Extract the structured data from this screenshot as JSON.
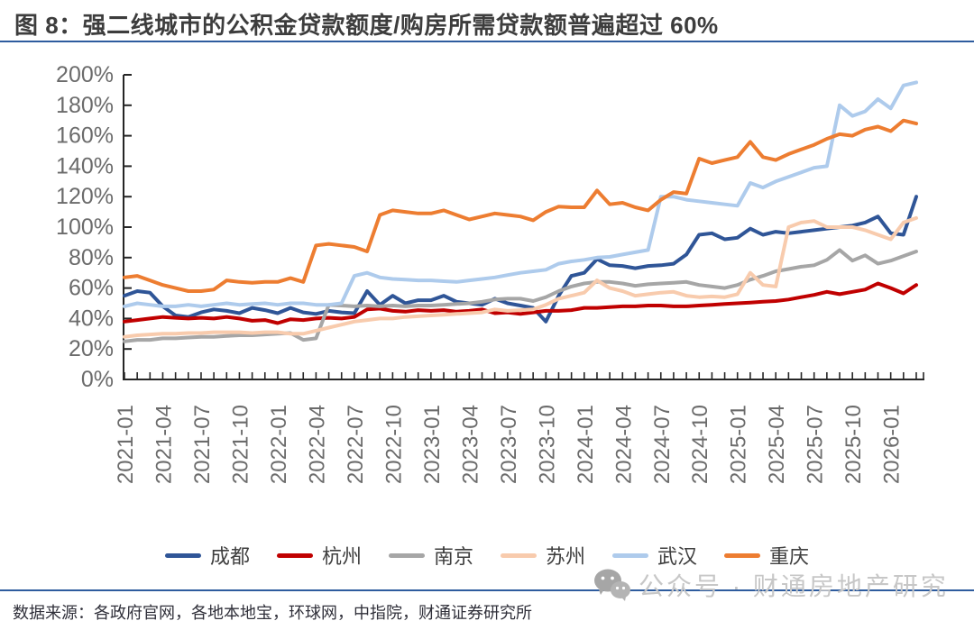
{
  "title": "图 8：强二线城市的公积金贷款额度/购房所需贷款额普遍超过 60%",
  "source": "数据来源：各政府官网，各地本地宝，环球网，中指院，财通证券研究所",
  "watermark": {
    "icon": "wechat-icon",
    "text": "公众号 · 财通房地产研究"
  },
  "colors": {
    "accent_rule": "#2e5c9e",
    "axis": "#262626",
    "tick_label": "#6b6b6b"
  },
  "chart_data": {
    "type": "line",
    "title": "",
    "xlabel": "",
    "ylabel": "",
    "ylim": [
      0,
      200
    ],
    "grid": false,
    "legend_position": "bottom",
    "x_start": "2021-01",
    "x_end": "2026-03",
    "x_frequency": "monthly",
    "x_tick_labels": [
      "2021-01",
      "2021-04",
      "2021-07",
      "2021-10",
      "2022-01",
      "2022-04",
      "2022-07",
      "2022-10",
      "2023-01",
      "2023-04",
      "2023-07",
      "2023-10",
      "2024-01",
      "2024-04",
      "2024-07",
      "2024-10",
      "2025-01",
      "2025-04",
      "2025-07",
      "2025-10",
      "2026-01"
    ],
    "y_tick_labels": [
      "0%",
      "20%",
      "40%",
      "60%",
      "80%",
      "100%",
      "120%",
      "140%",
      "160%",
      "180%",
      "200%"
    ],
    "series": [
      {
        "name": "成都",
        "color": "#2f5597",
        "values": [
          55,
          58,
          57,
          48,
          42,
          41,
          44,
          46,
          45,
          43.5,
          47,
          45.5,
          43.5,
          47,
          44,
          43,
          45,
          44,
          43.5,
          58,
          49,
          55,
          50,
          52,
          52,
          55,
          51,
          50,
          49,
          53,
          50,
          48.5,
          47,
          38,
          55,
          68,
          70,
          79,
          75,
          74.5,
          73,
          74.5,
          75,
          76,
          82,
          95,
          96,
          92,
          93,
          99,
          95,
          97,
          96,
          97,
          98,
          99,
          100,
          101,
          103,
          107,
          96,
          95,
          120
        ]
      },
      {
        "name": "杭州",
        "color": "#c00000",
        "values": [
          38,
          39,
          40,
          41,
          40.5,
          40,
          40.5,
          40,
          41,
          40,
          38.5,
          39,
          37,
          39.5,
          39,
          40,
          40.5,
          40,
          41,
          46,
          46.5,
          45,
          44.5,
          45.5,
          45,
          45.5,
          44.5,
          45,
          46,
          43.5,
          44,
          43,
          44,
          45,
          45,
          45.5,
          47,
          47,
          47.5,
          48,
          48,
          48.5,
          48.5,
          48,
          48,
          48.5,
          49,
          49.5,
          50,
          50.5,
          51,
          51.5,
          52.5,
          54,
          55.5,
          57.5,
          56,
          57.5,
          59,
          63,
          60,
          56.5,
          62
        ]
      },
      {
        "name": "南京",
        "color": "#a6a6a6",
        "values": [
          25,
          26,
          26,
          27,
          27,
          27.5,
          28,
          28,
          28.5,
          29,
          29,
          29.5,
          30,
          30.5,
          26,
          27,
          49,
          48.5,
          48,
          48.5,
          48,
          48.5,
          48,
          48.5,
          48.5,
          49,
          49.5,
          50,
          51,
          52.5,
          53,
          53,
          51.5,
          54,
          58,
          61,
          63,
          64,
          64,
          63,
          61.5,
          62.5,
          63,
          63.5,
          64,
          62,
          61,
          60,
          62,
          65.5,
          68,
          71,
          72.5,
          74,
          75,
          78.5,
          85,
          78,
          81.5,
          76,
          78,
          81,
          84
        ]
      },
      {
        "name": "苏州",
        "color": "#f8cbad",
        "values": [
          28,
          29,
          29.5,
          30,
          30,
          30.5,
          30.5,
          31,
          31,
          31,
          30.5,
          31,
          31,
          30,
          30,
          32,
          34,
          36,
          38,
          39,
          40,
          40,
          41,
          41.5,
          42,
          42.5,
          43,
          43.5,
          44,
          46,
          45,
          45.5,
          46,
          49,
          53,
          55,
          57,
          65,
          60,
          58,
          55,
          56,
          57,
          57.5,
          55,
          54,
          54.5,
          54,
          56,
          70,
          62,
          61,
          100,
          103,
          104,
          100,
          100,
          100,
          98,
          95,
          92,
          103,
          106
        ]
      },
      {
        "name": "武汉",
        "color": "#aecbec",
        "values": [
          48,
          50,
          49,
          48,
          48,
          49,
          48,
          49,
          50,
          49,
          49.5,
          50,
          49,
          50,
          50,
          49,
          49,
          50,
          68,
          70,
          67,
          66,
          65.5,
          65,
          65,
          64.5,
          64,
          65,
          66,
          67,
          68.5,
          70,
          71,
          72,
          76,
          77.5,
          78.5,
          80,
          80.5,
          82,
          83.5,
          85,
          120,
          120,
          118,
          117,
          116,
          115,
          114,
          129,
          126,
          130,
          133,
          136,
          139,
          140,
          180,
          173,
          176,
          184,
          178,
          193,
          195
        ]
      },
      {
        "name": "重庆",
        "color": "#ed7d31",
        "values": [
          67,
          68,
          65,
          62,
          60,
          58,
          58,
          59,
          65,
          64,
          63.5,
          64,
          64,
          66.5,
          64,
          88,
          89,
          88,
          87,
          84,
          108,
          111,
          110,
          109,
          109,
          111,
          108,
          105,
          107,
          109,
          108,
          107,
          104.5,
          110,
          113.5,
          113,
          113,
          124,
          115,
          116,
          113,
          111,
          118,
          123,
          122,
          145,
          142,
          144,
          146,
          156,
          146,
          144,
          148,
          151,
          154,
          158,
          161,
          160,
          164,
          166,
          163,
          170,
          168
        ]
      }
    ]
  }
}
